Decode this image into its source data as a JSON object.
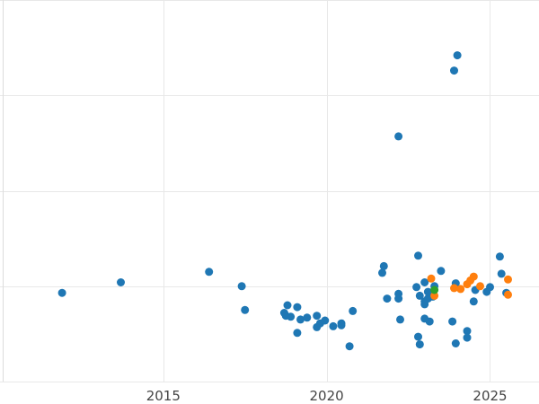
{
  "chart_data": {
    "type": "scatter",
    "title": "",
    "xlabel": "",
    "ylabel": "",
    "xlim": [
      2010.0,
      2026.5
    ],
    "ylim": [
      -1.0,
      3.0
    ],
    "x_ticks": [
      2015,
      2020,
      2025
    ],
    "x_tick_labels": [
      "2015",
      "2020",
      "2025"
    ],
    "y_gridlines": [
      -1.0,
      0.0,
      1.0,
      2.0,
      3.0
    ],
    "grid": true,
    "legend": "none",
    "colors": {
      "blue": "#1f77b4",
      "orange": "#ff7f0e",
      "green": "#2ca02c",
      "grid": "#e8e8e8",
      "axis": "#dddddd"
    },
    "series": [
      {
        "color": "#1f77b4",
        "points": [
          [
            2011.9,
            -0.07
          ],
          [
            2013.7,
            0.04
          ],
          [
            2016.4,
            0.15
          ],
          [
            2017.4,
            0.0
          ],
          [
            2017.5,
            -0.25
          ],
          [
            2018.7,
            -0.28
          ],
          [
            2018.75,
            -0.31
          ],
          [
            2018.8,
            -0.2
          ],
          [
            2018.9,
            -0.32
          ],
          [
            2019.1,
            -0.22
          ],
          [
            2019.1,
            -0.49
          ],
          [
            2019.2,
            -0.35
          ],
          [
            2019.4,
            -0.33
          ],
          [
            2019.7,
            -0.31
          ],
          [
            2019.7,
            -0.43
          ],
          [
            2019.8,
            -0.39
          ],
          [
            2019.95,
            -0.36
          ],
          [
            2020.2,
            -0.42
          ],
          [
            2020.45,
            -0.39
          ],
          [
            2020.45,
            -0.41
          ],
          [
            2020.7,
            -0.63
          ],
          [
            2020.8,
            -0.26
          ],
          [
            2021.7,
            0.14
          ],
          [
            2021.75,
            0.21
          ],
          [
            2021.85,
            -0.13
          ],
          [
            2022.2,
            -0.08
          ],
          [
            2022.2,
            -0.13
          ],
          [
            2022.25,
            -0.35
          ],
          [
            2022.2,
            1.57
          ],
          [
            2022.75,
            -0.01
          ],
          [
            2022.8,
            0.32
          ],
          [
            2022.8,
            -0.53
          ],
          [
            2022.85,
            -0.61
          ],
          [
            2022.85,
            -0.1
          ],
          [
            2023.0,
            0.04
          ],
          [
            2023.0,
            -0.16
          ],
          [
            2023.0,
            -0.19
          ],
          [
            2023.0,
            -0.34
          ],
          [
            2023.1,
            -0.13
          ],
          [
            2023.1,
            -0.06
          ],
          [
            2023.15,
            -0.37
          ],
          [
            2023.25,
            -0.11
          ],
          [
            2023.3,
            0.0
          ],
          [
            2023.5,
            0.16
          ],
          [
            2023.85,
            -0.37
          ],
          [
            2023.9,
            2.26
          ],
          [
            2023.95,
            0.03
          ],
          [
            2023.95,
            -0.6
          ],
          [
            2024.0,
            2.42
          ],
          [
            2024.3,
            -0.47
          ],
          [
            2024.3,
            -0.54
          ],
          [
            2024.5,
            -0.16
          ],
          [
            2024.55,
            -0.04
          ],
          [
            2024.9,
            -0.06
          ],
          [
            2025.0,
            -0.01
          ],
          [
            2025.3,
            0.31
          ],
          [
            2025.35,
            0.13
          ],
          [
            2025.5,
            -0.07
          ]
        ]
      },
      {
        "color": "#ff7f0e",
        "points": [
          [
            2023.2,
            0.08
          ],
          [
            2023.3,
            -0.1
          ],
          [
            2023.9,
            -0.02
          ],
          [
            2024.1,
            -0.03
          ],
          [
            2024.3,
            0.02
          ],
          [
            2024.4,
            0.06
          ],
          [
            2024.5,
            0.1
          ],
          [
            2024.7,
            0.0
          ],
          [
            2025.55,
            0.07
          ],
          [
            2025.55,
            -0.09
          ]
        ]
      },
      {
        "color": "#2ca02c",
        "points": [
          [
            2023.3,
            -0.04
          ]
        ]
      }
    ]
  }
}
